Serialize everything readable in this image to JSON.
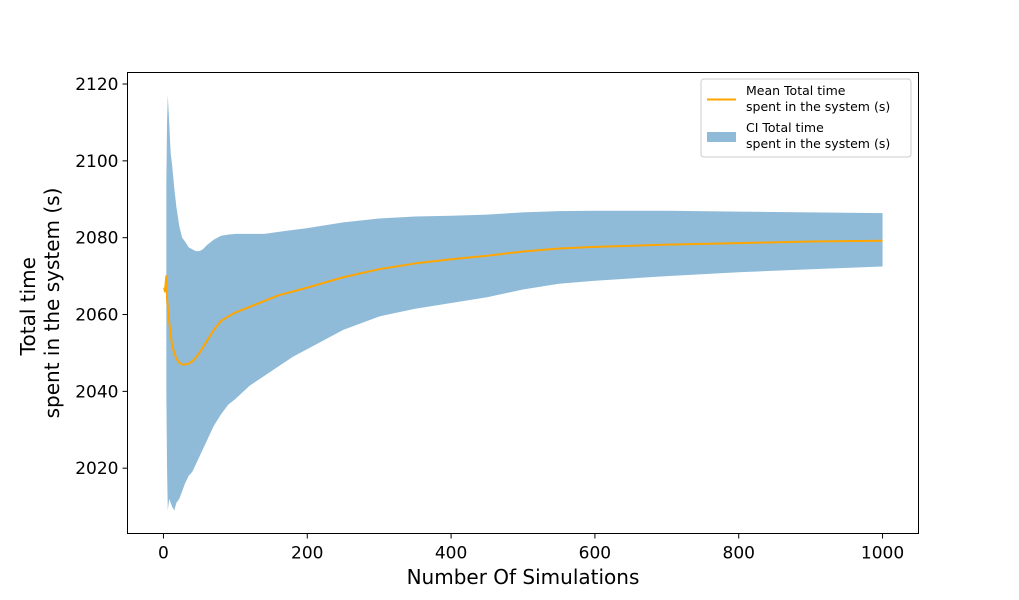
{
  "chart_data": {
    "type": "line",
    "title": "",
    "xlabel": "Number Of Simulations",
    "ylabel_lines": [
      "Total time",
      "spent in the system (s)"
    ],
    "xlim": [
      -50,
      1050
    ],
    "ylim": [
      2003,
      2123
    ],
    "xticks": [
      0,
      200,
      400,
      600,
      800,
      1000
    ],
    "yticks": [
      2020,
      2040,
      2060,
      2080,
      2100,
      2120
    ],
    "grid": false,
    "legend_position": "top-right",
    "colors": {
      "mean": "#ffa500",
      "ci": "#1f77b4",
      "ci_opacity": 0.5
    },
    "series": [
      {
        "name_lines": [
          "Mean Total time",
          "spent in the system (s)"
        ],
        "kind": "line",
        "x": [
          1,
          2,
          3,
          4,
          5,
          6,
          8,
          10,
          12,
          15,
          18,
          22,
          26,
          30,
          35,
          40,
          45,
          50,
          60,
          70,
          80,
          90,
          100,
          120,
          140,
          160,
          180,
          200,
          250,
          300,
          350,
          400,
          450,
          500,
          550,
          600,
          700,
          800,
          900,
          1000
        ],
        "y": [
          2067,
          2066,
          2068,
          2070,
          2064,
          2062,
          2058,
          2055,
          2052,
          2050,
          2048.5,
          2047.5,
          2047,
          2047,
          2047.2,
          2047.8,
          2048.8,
          2050,
          2053,
          2056,
          2058.3,
          2059.5,
          2060.5,
          2062,
          2063.5,
          2065,
          2066,
          2067,
          2069.7,
          2071.8,
          2073.3,
          2074.4,
          2075.3,
          2076.4,
          2077.2,
          2077.6,
          2078.2,
          2078.6,
          2079,
          2079.2
        ]
      },
      {
        "name_lines": [
          "CI Total time",
          "spent in the system (s)"
        ],
        "kind": "band",
        "x": [
          4,
          5,
          6,
          8,
          10,
          12,
          15,
          18,
          22,
          26,
          30,
          35,
          40,
          45,
          50,
          55,
          60,
          70,
          80,
          90,
          100,
          120,
          140,
          160,
          180,
          200,
          250,
          300,
          350,
          400,
          450,
          500,
          550,
          600,
          700,
          800,
          900,
          1000
        ],
        "lower": [
          2040,
          2020,
          2009,
          2012,
          2011,
          2010,
          2009,
          2011,
          2012,
          2014,
          2016,
          2018,
          2019,
          2021,
          2023,
          2025,
          2027,
          2031,
          2034,
          2036.5,
          2038,
          2041.5,
          2044,
          2046.5,
          2049,
          2051,
          2056,
          2059.5,
          2061.5,
          2063,
          2064.5,
          2066.5,
          2068,
          2068.8,
          2070,
          2071,
          2071.8,
          2072.5
        ],
        "upper": [
          2094,
          2110,
          2117,
          2110,
          2102,
          2099,
          2093,
          2088,
          2083,
          2080,
          2079,
          2077.5,
          2077,
          2076.5,
          2076.5,
          2077,
          2078,
          2079.5,
          2080.5,
          2080.8,
          2081,
          2081,
          2081,
          2081.5,
          2082,
          2082.5,
          2084,
          2085,
          2085.5,
          2085.7,
          2086,
          2086.6,
          2086.9,
          2087,
          2087,
          2086.8,
          2086.6,
          2086.4
        ]
      }
    ]
  }
}
